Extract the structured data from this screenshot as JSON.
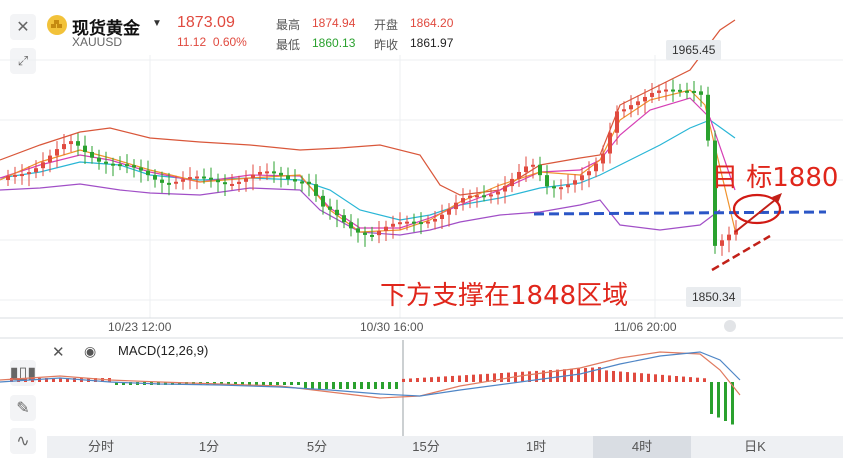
{
  "header": {
    "title": "现货黄金",
    "code": "XAUUSD",
    "price": "1873.09",
    "change": "11.12",
    "change_pct": "0.60%",
    "high_label": "最高",
    "high_value": "1874.94",
    "open_label": "开盘",
    "open_value": "1864.20",
    "low_label": "最低",
    "low_value": "1860.13",
    "prev_close_label": "昨收",
    "prev_close_value": "1861.97"
  },
  "chart": {
    "max_tag": "1965.45",
    "min_tag": "1850.34",
    "x_labels": [
      "10/23 12:00",
      "10/30 16:00",
      "11/06 20:00"
    ],
    "annotation_target": "目 标1880",
    "annotation_support": "下方支撑在1848区域"
  },
  "indicator": {
    "macd_label": "MACD(12,26,9)"
  },
  "timeframes": [
    "分时",
    "1分",
    "5分",
    "15分",
    "1时",
    "4时",
    "日K"
  ],
  "active_timeframe": "4时",
  "colors": {
    "up": "#e04a3f",
    "down": "#2aa12e",
    "annotation": "#e0261b",
    "support_line": "#2b56c6"
  },
  "icons": [
    "close-icon",
    "expand-icon",
    "gold-coin-icon",
    "chevron-down-icon",
    "eye-icon",
    "candlestick-icon",
    "pencil-icon",
    "indicator-icon",
    "scroll-dot-icon"
  ]
}
